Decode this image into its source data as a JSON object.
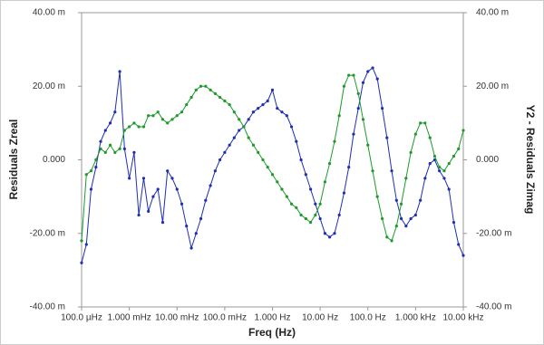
{
  "chart_data": {
    "type": "line",
    "xlabel": "Freq (Hz)",
    "ylabel": "Residuals Zreal",
    "y2label": "Y2 - Residuals Zimag",
    "xscale": "log",
    "xlim": [
      0.0001,
      10000.0
    ],
    "xticks": [
      {
        "value": 0.0001,
        "label": "100.0 µHz"
      },
      {
        "value": 0.001,
        "label": "1.000 mHz"
      },
      {
        "value": 0.01,
        "label": "10.00 mHz"
      },
      {
        "value": 0.1,
        "label": "100.0 mHz"
      },
      {
        "value": 1,
        "label": "1.000 Hz"
      },
      {
        "value": 10,
        "label": "10.00 Hz"
      },
      {
        "value": 100,
        "label": "100.0 Hz"
      },
      {
        "value": 1000,
        "label": "1.000 kHz"
      },
      {
        "value": 10000,
        "label": "10.00 kHz"
      }
    ],
    "ylim": [
      -40,
      40
    ],
    "yticks": [
      {
        "value": -40,
        "label": "-40.00 m"
      },
      {
        "value": -20,
        "label": "-20.00 m"
      },
      {
        "value": 0,
        "label": "0.000"
      },
      {
        "value": 20,
        "label": "20.00 m"
      },
      {
        "value": 40,
        "label": "40.00 m"
      }
    ],
    "y2lim": [
      -40,
      40
    ],
    "y2ticks": [
      {
        "value": -40,
        "label": "-40.00 m"
      },
      {
        "value": -20,
        "label": "-20.00 m"
      },
      {
        "value": 0,
        "label": "0.000"
      },
      {
        "value": 20,
        "label": "20.00 m"
      },
      {
        "value": 40,
        "label": "40.00 m"
      }
    ],
    "x": [
      0.0001,
      0.000126,
      0.000158,
      0.0002,
      0.000251,
      0.000316,
      0.000398,
      0.000501,
      0.000631,
      0.000794,
      0.001,
      0.00126,
      0.00158,
      0.002,
      0.00251,
      0.00316,
      0.00398,
      0.00501,
      0.00631,
      0.00794,
      0.01,
      0.0126,
      0.0158,
      0.02,
      0.0251,
      0.0316,
      0.0398,
      0.0501,
      0.0631,
      0.0794,
      0.1,
      0.126,
      0.158,
      0.2,
      0.251,
      0.316,
      0.398,
      0.501,
      0.631,
      0.794,
      1,
      1.26,
      1.58,
      2,
      2.51,
      3.16,
      3.98,
      5.01,
      6.31,
      7.94,
      10,
      12.6,
      15.8,
      20,
      25.1,
      31.6,
      39.8,
      50.1,
      63.1,
      79.4,
      100,
      126,
      158,
      200,
      251,
      316,
      398,
      501,
      631,
      794,
      1000,
      1260,
      1580,
      2000,
      2510,
      3160,
      3980,
      5010,
      6310,
      7940,
      10000
    ],
    "series": [
      {
        "color": "#1f2fb0",
        "axis": "y",
        "values": [
          -28,
          -23,
          -8,
          -2,
          5,
          8,
          10,
          13,
          24,
          3,
          -5,
          2,
          -15,
          -5,
          -14,
          -10,
          -8,
          -17,
          -3,
          -5,
          -8,
          -12,
          -18,
          -24,
          -20,
          -16,
          -11,
          -7,
          -3,
          0,
          2,
          4,
          6,
          8,
          9,
          11,
          13,
          14,
          15,
          16,
          19,
          14,
          13,
          12,
          9,
          5,
          0,
          -4,
          -8,
          -12,
          -16,
          -20,
          -21,
          -20,
          -15,
          -9,
          -2,
          7,
          14,
          21,
          24,
          25,
          22,
          14,
          6,
          -3,
          -11,
          -16,
          -18,
          -16,
          -15,
          -11,
          -5,
          -1,
          0,
          -3,
          -5,
          -8,
          -17,
          -23,
          -26
        ]
      },
      {
        "color": "#1e9a2a",
        "axis": "y2",
        "values": [
          -22,
          -4,
          -3,
          0,
          3,
          2,
          4,
          2,
          3,
          8,
          9,
          10,
          9,
          9,
          12,
          12,
          13,
          11,
          10,
          11,
          12,
          13,
          15,
          17,
          19,
          20,
          20,
          19,
          18,
          17,
          16,
          15,
          13,
          11,
          9,
          6,
          4,
          2,
          0,
          -2,
          -4,
          -6,
          -8,
          -10,
          -12,
          -13,
          -15,
          -16,
          -17,
          -15,
          -12,
          -6,
          -1,
          5,
          12,
          20,
          23,
          23,
          18,
          11,
          4,
          -3,
          -10,
          -16,
          -21,
          -22,
          -18,
          -12,
          -5,
          2,
          7,
          10,
          10,
          6,
          1,
          -2,
          -3,
          -1,
          1,
          3,
          8
        ]
      }
    ]
  }
}
